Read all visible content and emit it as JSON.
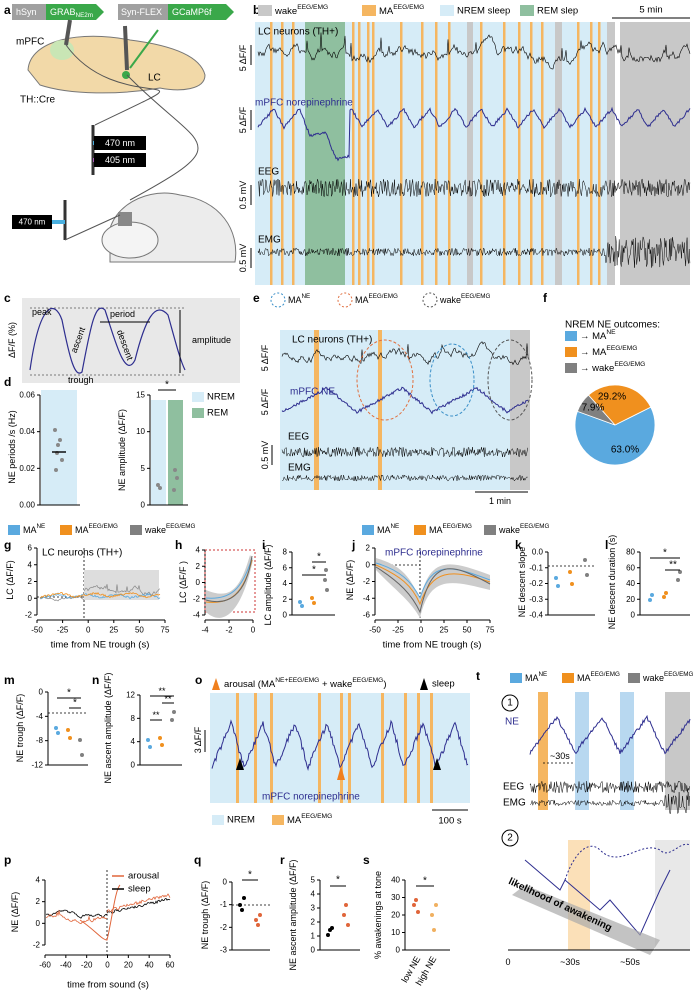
{
  "a": {
    "label": "a",
    "hsyn": "hSyn",
    "grab": {
      "parts": [
        "GRAB",
        "NE2m"
      ]
    },
    "synflex": "Syn-FLEX",
    "gcamp": "GCaMP6f",
    "mpfc": "mPFC",
    "lc": "LC",
    "thcre": "TH::Cre",
    "l470a": "470 nm",
    "l405": "405 nm",
    "l470b": "470 nm"
  },
  "b": {
    "label": "b",
    "leg": [
      {
        "parts": [
          "wake",
          "EEG/EMG"
        ]
      },
      {
        "parts": [
          "MA",
          "EEG/EMG"
        ]
      },
      "NREM sleep",
      "REM slep"
    ],
    "scale": "5 min",
    "lc": "LC neurons (TH+)",
    "lc_scale": "5 ΔF/F",
    "ne": "mPFC norepinephrine",
    "ne_scale": "5 ΔF/F",
    "eeg": "EEG",
    "eeg_scale": "0.5 mV",
    "emg": "EMG",
    "emg_scale": "0.5 mV"
  },
  "c": {
    "label": "c",
    "ylabel": "ΔF/F (%)",
    "peak": "peak",
    "period": "period",
    "ascent": "ascent",
    "descent": "descent",
    "amplitude": "amplitude",
    "trough": "trough"
  },
  "d": {
    "label": "d",
    "left": {
      "ylabel": "NE periods /s (Hz)",
      "yticks": [
        "0.00",
        "0.02",
        "0.04",
        "0.06"
      ]
    },
    "right": {
      "ylabel": "NE amplitude (ΔF/F)",
      "yticks": [
        "0",
        "5",
        "10",
        "15"
      ],
      "sig": "*"
    },
    "leg": [
      "NREM",
      "REM"
    ]
  },
  "e": {
    "label": "e",
    "leg": [
      {
        "parts": [
          "MA",
          "NE"
        ]
      },
      {
        "parts": [
          "MA",
          "EEG/EMG"
        ]
      },
      {
        "parts": [
          "wake",
          "EEG/EMG"
        ]
      }
    ],
    "lc": "LC neurons (TH+)",
    "lc_scale": "5 ΔF/F",
    "ne": "mPFC NE",
    "ne_scale": "5 ΔF/F",
    "eeg": "EEG",
    "eeg_scale": "0.5 mV",
    "emg": "EMG",
    "scale": "1 min"
  },
  "f": {
    "label": "f",
    "title": "NREM NE outcomes:",
    "leg": [
      {
        "parts": [
          "→ MA",
          "NE"
        ]
      },
      {
        "parts": [
          "→ MA",
          "EEG/EMG"
        ]
      },
      {
        "parts": [
          "→ wake",
          "EEG/EMG"
        ]
      }
    ],
    "values": [
      63.0,
      29.2,
      7.9
    ],
    "value_labels": [
      "63.0%",
      "29.2%",
      "7.9%"
    ],
    "colors": [
      "#5aa9df",
      "#f0901e",
      "#808080"
    ]
  },
  "leg_g": [
    {
      "parts": [
        "MA",
        "NE"
      ]
    },
    {
      "parts": [
        "MA",
        "EEG/EMG"
      ]
    },
    {
      "parts": [
        "wake",
        "EEG/EMG"
      ]
    }
  ],
  "g": {
    "label": "g",
    "title": "LC neurons (TH+)",
    "ylabel": "LC (ΔF/F)",
    "yticks": [
      "-2",
      "0",
      "2",
      "4",
      "6"
    ],
    "xticks": [
      "-50",
      "-25",
      "0",
      "25",
      "50",
      "75"
    ],
    "xlabel": "time from NE trough (s)"
  },
  "h": {
    "label": "h",
    "ylabel": "LC (ΔF/F )",
    "yticks": [
      "-4",
      "-2",
      "0",
      "2",
      "4"
    ],
    "xticks": [
      "-4",
      "-2",
      "0"
    ]
  },
  "i": {
    "label": "i",
    "ylabel": "LC amplitude (ΔF/F)",
    "yticks": [
      "0",
      "2",
      "4",
      "6",
      "8"
    ],
    "sig": [
      "*",
      "*"
    ]
  },
  "leg_j": [
    {
      "parts": [
        "MA",
        "NE"
      ]
    },
    {
      "parts": [
        "MA",
        "EEG/EMG"
      ]
    },
    {
      "parts": [
        "wake",
        "EEG/EMG"
      ]
    }
  ],
  "j": {
    "label": "j",
    "title": "mPFC norepinephrine",
    "ylabel": "NE (ΔF/F)",
    "yticks": [
      "-6",
      "-4",
      "-2",
      "0",
      "2"
    ],
    "xticks": [
      "-50",
      "-25",
      "0",
      "25",
      "50",
      "75"
    ],
    "xlabel": "time from NE trough (s)"
  },
  "k": {
    "label": "k",
    "ylabel": "NE descent slope",
    "yticks": [
      "-0.4",
      "-0.3",
      "-0.2",
      "-0.1",
      "0.0"
    ]
  },
  "l": {
    "label": "l",
    "ylabel": "NE descent duration (s)",
    "yticks": [
      "0",
      "20",
      "40",
      "60",
      "80"
    ],
    "sig": [
      "*",
      "**"
    ]
  },
  "m": {
    "label": "m",
    "ylabel": "NE trough (ΔF/F)",
    "yticks": [
      "-12",
      "-8",
      "-4",
      "0"
    ],
    "sig": [
      "*",
      "*"
    ]
  },
  "n": {
    "label": "n",
    "ylabel": "NE ascent amplitude (ΔF/F)",
    "yticks": [
      "0",
      "4",
      "8",
      "12"
    ],
    "sig": [
      "**",
      "**",
      "**"
    ]
  },
  "o": {
    "label": "o",
    "arousal": {
      "parts": [
        "arousal (MA",
        "NE+EEG/EMG",
        " + wake",
        "EEG/EMG",
        ")"
      ]
    },
    "sleep": "sleep",
    "scale_y": "3 ΔF/F",
    "trace": "mPFC norepinephrine",
    "leg": [
      "NREM",
      {
        "parts": [
          "MA",
          "EEG/EMG"
        ]
      }
    ],
    "scale_x": "100 s"
  },
  "t": {
    "label": "t",
    "leg": [
      {
        "parts": [
          "MA",
          "NE"
        ]
      },
      {
        "parts": [
          "MA",
          "EEG/EMG"
        ]
      },
      {
        "parts": [
          "wake",
          "EEG/EMG"
        ]
      }
    ],
    "n1": "1",
    "ne": "NE",
    "t30": "~30s",
    "eeg": "EEG",
    "emg": "EMG",
    "n2": "2",
    "likelihood": "likelihood of awakening",
    "x0": "0",
    "x30": "~30s",
    "x50": "~50s"
  },
  "p": {
    "label": "p",
    "ylabel": "NE (ΔF/F)",
    "yticks": [
      "-2",
      "0",
      "2",
      "4"
    ],
    "xticks": [
      "-60",
      "-40",
      "-20",
      "0",
      "20",
      "40",
      "60"
    ],
    "xlabel": "time from sound (s)",
    "leg": [
      "arousal",
      "sleep"
    ]
  },
  "q": {
    "label": "q",
    "ylabel": "NE trough (ΔF/F)",
    "yticks": [
      "-3",
      "-2",
      "-1",
      "0"
    ],
    "sig": "*"
  },
  "r": {
    "label": "r",
    "ylabel": "NE ascent amplitude (ΔF/F)",
    "yticks": [
      "0",
      "1",
      "2",
      "3",
      "4",
      "5"
    ],
    "sig": "*"
  },
  "s": {
    "label": "s",
    "ylabel": "% awakenings at tone",
    "yticks": [
      "0",
      "10",
      "20",
      "30",
      "40"
    ],
    "sig": "*",
    "xticks": [
      "low NE",
      "high NE"
    ]
  }
}
